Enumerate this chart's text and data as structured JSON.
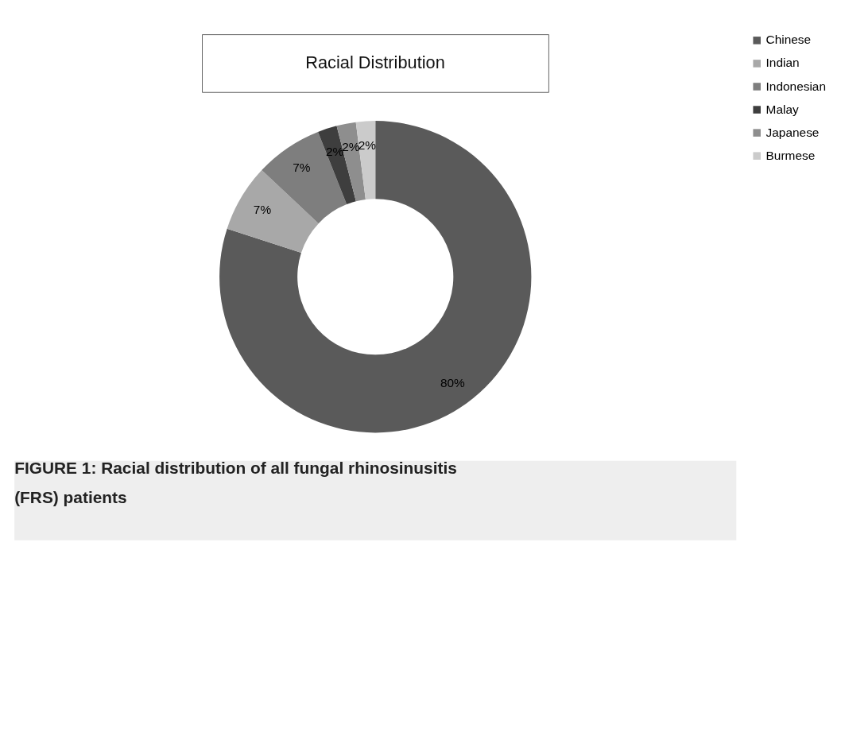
{
  "chart_data": {
    "type": "donut",
    "title": "Racial Distribution",
    "categories": [
      "Chinese",
      "Indian",
      "Indonesian",
      "Malay",
      "Japanese",
      "Burmese"
    ],
    "values": [
      80,
      7,
      7,
      2,
      2,
      2
    ],
    "colors": [
      "#5a5a5a",
      "#a8a8a8",
      "#7e7e7e",
      "#3e3e3e",
      "#8e8e8e",
      "#cbcbcb"
    ],
    "value_labels": [
      "80%",
      "7%",
      "7%",
      "2%",
      "2%",
      "2%"
    ],
    "legend": "right",
    "annotations": [
      "FIGURE 1: Racial distribution of all fungal rhinosinusitis (FRS) patients"
    ]
  }
}
